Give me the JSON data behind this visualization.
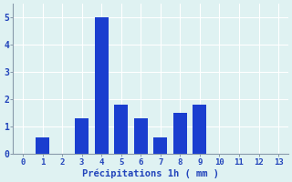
{
  "categories": [
    0,
    1,
    2,
    3,
    4,
    5,
    6,
    7,
    8,
    9,
    10,
    11,
    12,
    13
  ],
  "values": [
    0,
    0.6,
    0,
    1.3,
    5.0,
    1.8,
    1.3,
    0.6,
    1.5,
    1.8,
    0,
    0,
    0,
    0
  ],
  "bar_color": "#1a3ecf",
  "background_color": "#dff2f2",
  "grid_color": "#ffffff",
  "spine_color": "#8899aa",
  "tick_color": "#2244bb",
  "xlabel": "Précipitations 1h ( mm )",
  "xlabel_color": "#2244bb",
  "ylim": [
    0,
    5.5
  ],
  "yticks": [
    0,
    1,
    2,
    3,
    4,
    5
  ],
  "xlim": [
    -0.5,
    13.5
  ],
  "bar_width": 0.7,
  "figsize": [
    3.2,
    2.0
  ],
  "dpi": 100,
  "tick_fontsize": 6.5,
  "xlabel_fontsize": 7.5
}
